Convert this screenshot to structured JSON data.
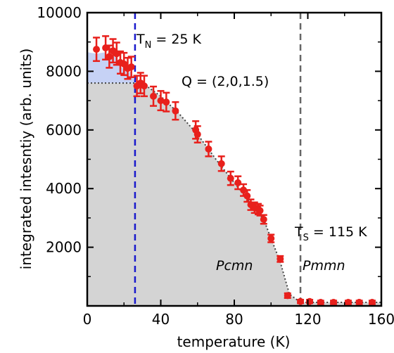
{
  "chart_data": {
    "type": "scatter",
    "xlabel": "temperature (K)",
    "ylabel": "integrated intesntiy (arb. units)",
    "xlim": [
      0,
      160
    ],
    "ylim": [
      0,
      10000
    ],
    "xticks": [
      0,
      40,
      80,
      120,
      160
    ],
    "yticks": [
      2000,
      4000,
      6000,
      8000,
      10000
    ],
    "x_tick_labels": [
      "0",
      "40",
      "80",
      "120",
      "160"
    ],
    "y_tick_labels": [
      "2000",
      "4000",
      "6000",
      "8000",
      "10000"
    ],
    "marker_color": "#e8201c",
    "tn_line_color": "#1a1acc",
    "ts_line_color": "#666666",
    "shade_gray": "#d4d4d4",
    "shade_blue": "#c6d2f5",
    "annotations": {
      "tn_main": "T",
      "tn_sub": "N",
      "tn_rest": " = 25 K",
      "ts_main": "T",
      "ts_sub": "S",
      "ts_rest": " = 115 K",
      "q_vector": "Q = (2,0,1.5)",
      "phase_left": "Pcmn",
      "phase_right": "Pmmn"
    },
    "vlines": [
      {
        "x": 26,
        "style": "dashed",
        "color": "#1a1acc"
      },
      {
        "x": 116,
        "style": "dashed",
        "color": "#666666"
      }
    ],
    "baseline_level": 7600,
    "series": [
      {
        "points": [
          {
            "x": 5,
            "y": 8750,
            "err": 400
          },
          {
            "x": 10,
            "y": 8800,
            "err": 400
          },
          {
            "x": 12,
            "y": 8500,
            "err": 380
          },
          {
            "x": 14,
            "y": 8700,
            "err": 400
          },
          {
            "x": 16,
            "y": 8600,
            "err": 380
          },
          {
            "x": 18,
            "y": 8300,
            "err": 380
          },
          {
            "x": 20,
            "y": 8250,
            "err": 380
          },
          {
            "x": 22,
            "y": 8100,
            "err": 360
          },
          {
            "x": 24,
            "y": 8150,
            "err": 350
          },
          {
            "x": 27,
            "y": 7500,
            "err": 350
          },
          {
            "x": 29,
            "y": 7600,
            "err": 350
          },
          {
            "x": 31,
            "y": 7500,
            "err": 350
          },
          {
            "x": 36,
            "y": 7150,
            "err": 330
          },
          {
            "x": 40,
            "y": 7000,
            "err": 330
          },
          {
            "x": 43,
            "y": 6950,
            "err": 320
          },
          {
            "x": 48,
            "y": 6650,
            "err": 300
          },
          {
            "x": 59,
            "y": 6000,
            "err": 300
          },
          {
            "x": 60,
            "y": 5850,
            "err": 280
          },
          {
            "x": 66,
            "y": 5350,
            "err": 250
          },
          {
            "x": 73,
            "y": 4850,
            "err": 250
          },
          {
            "x": 78,
            "y": 4350,
            "err": 230
          },
          {
            "x": 82,
            "y": 4200,
            "err": 220
          },
          {
            "x": 85,
            "y": 3950,
            "err": 200
          },
          {
            "x": 87,
            "y": 3750,
            "err": 200
          },
          {
            "x": 89,
            "y": 3450,
            "err": 180
          },
          {
            "x": 91,
            "y": 3350,
            "err": 180
          },
          {
            "x": 93,
            "y": 3300,
            "err": 180
          },
          {
            "x": 94,
            "y": 3250,
            "err": 170
          },
          {
            "x": 96,
            "y": 2950,
            "err": 150
          },
          {
            "x": 100,
            "y": 2300,
            "err": 130
          },
          {
            "x": 105,
            "y": 1600,
            "err": 100
          },
          {
            "x": 109,
            "y": 350,
            "err": 80
          },
          {
            "x": 116,
            "y": 150,
            "err": 60
          },
          {
            "x": 121,
            "y": 150,
            "err": 60
          },
          {
            "x": 127,
            "y": 120,
            "err": 60
          },
          {
            "x": 134,
            "y": 120,
            "err": 60
          },
          {
            "x": 142,
            "y": 120,
            "err": 60
          },
          {
            "x": 148,
            "y": 120,
            "err": 60
          },
          {
            "x": 155,
            "y": 120,
            "err": 60
          }
        ]
      }
    ],
    "guide_curve": [
      [
        30,
        7600
      ],
      [
        40,
        7150
      ],
      [
        50,
        6550
      ],
      [
        60,
        5850
      ],
      [
        70,
        5000
      ],
      [
        80,
        4200
      ],
      [
        90,
        3400
      ],
      [
        96,
        2950
      ],
      [
        100,
        2300
      ],
      [
        105,
        1500
      ],
      [
        110,
        400
      ],
      [
        116,
        120
      ],
      [
        160,
        120
      ]
    ]
  }
}
